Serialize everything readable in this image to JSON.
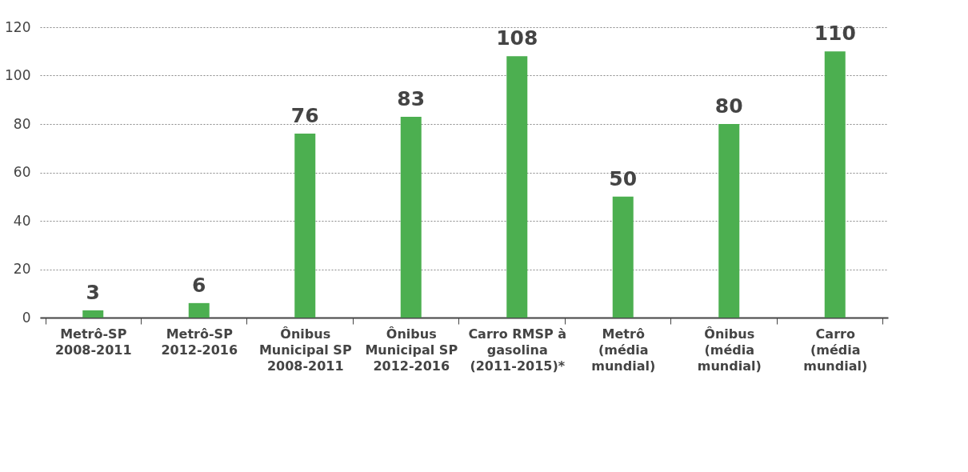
{
  "chart_data": {
    "type": "bar",
    "categories": [
      "Metrô-SP\n2008-2011",
      "Metrô-SP\n2012-2016",
      "Ônibus\nMunicipal SP\n2008-2011",
      "Ônibus\nMunicipal SP\n2012-2016",
      "Carro RMSP à\ngasolina\n(2011-2015)*",
      "Metrô\n(média\nmundial)",
      "Ônibus\n(média\nmundial)",
      "Carro\n(média\nmundial)"
    ],
    "values": [
      3,
      6,
      76,
      83,
      108,
      50,
      80,
      110
    ],
    "color": "#4caf50",
    "ylim": [
      0,
      120
    ],
    "yticks": [
      0,
      20,
      40,
      60,
      80,
      100,
      120
    ],
    "grid": "y",
    "data_labels": true
  }
}
